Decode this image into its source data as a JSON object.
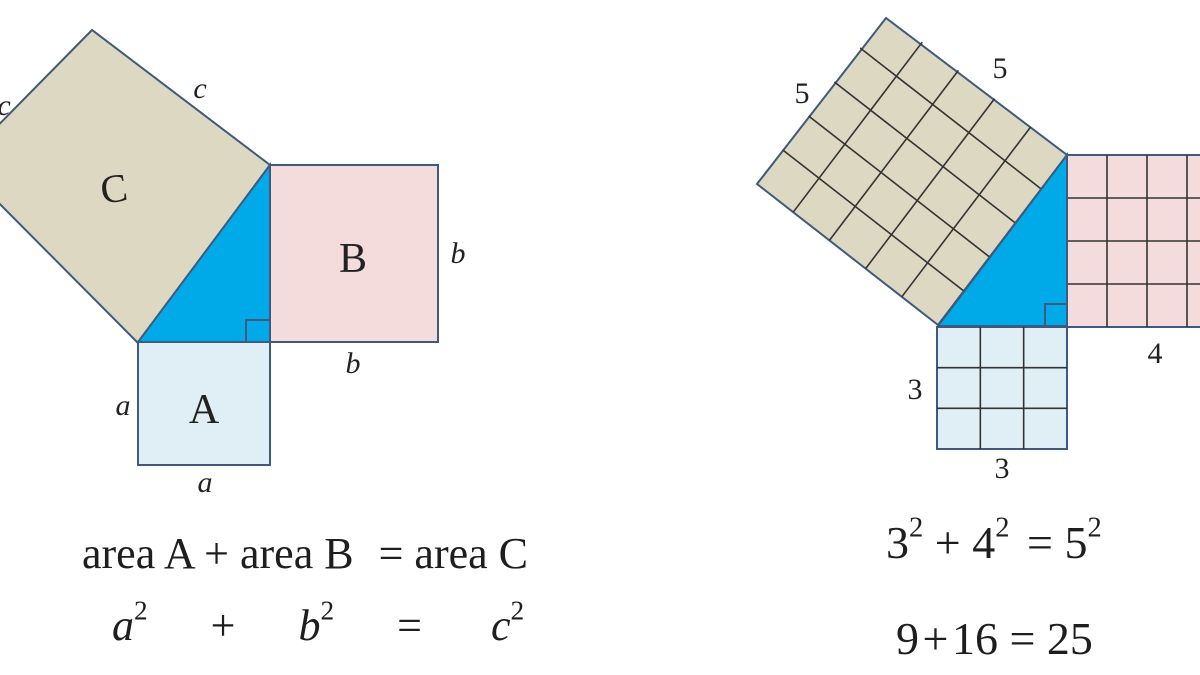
{
  "left_figure": {
    "labels": {
      "square_a": "A",
      "square_b": "B",
      "square_c": "C"
    },
    "sides": {
      "a_left": "a",
      "a_bottom": "a",
      "b_right": "b",
      "b_bottom": "b",
      "c_top": "c",
      "c_left": "c"
    }
  },
  "left_equations": {
    "words": {
      "t1": "area A",
      "plus": "+",
      "t2": "area B",
      "eq": "=",
      "t3": "area C"
    },
    "symbols": {
      "a": "a",
      "a_exp": "2",
      "plus": "+",
      "b": "b",
      "b_exp": "2",
      "eq": "=",
      "c": "c",
      "c_exp": "2"
    }
  },
  "right_figure": {
    "sides": {
      "left_3": "3",
      "bottom_3": "3",
      "bottom_4": "4",
      "left_5": "5",
      "top_5": "5"
    },
    "grid": {
      "square_3": 3,
      "square_4": 4,
      "square_5": 5
    }
  },
  "right_equations": {
    "squares": {
      "b1": "3",
      "e1": "2",
      "plus": "+",
      "b2": "4",
      "e2": "2",
      "eq": "=",
      "b3": "5",
      "e3": "2"
    },
    "sums": {
      "n1": "9",
      "plus": "+",
      "n2": "16",
      "eq": "=",
      "n3": "25"
    }
  },
  "colors": {
    "square_a": "#dfeff5",
    "square_b": "#f4dcdd",
    "square_c": "#dcd8c2",
    "triangle": "#00a9e8",
    "outline": "#3e5a7e",
    "grid_line": "#333333"
  }
}
